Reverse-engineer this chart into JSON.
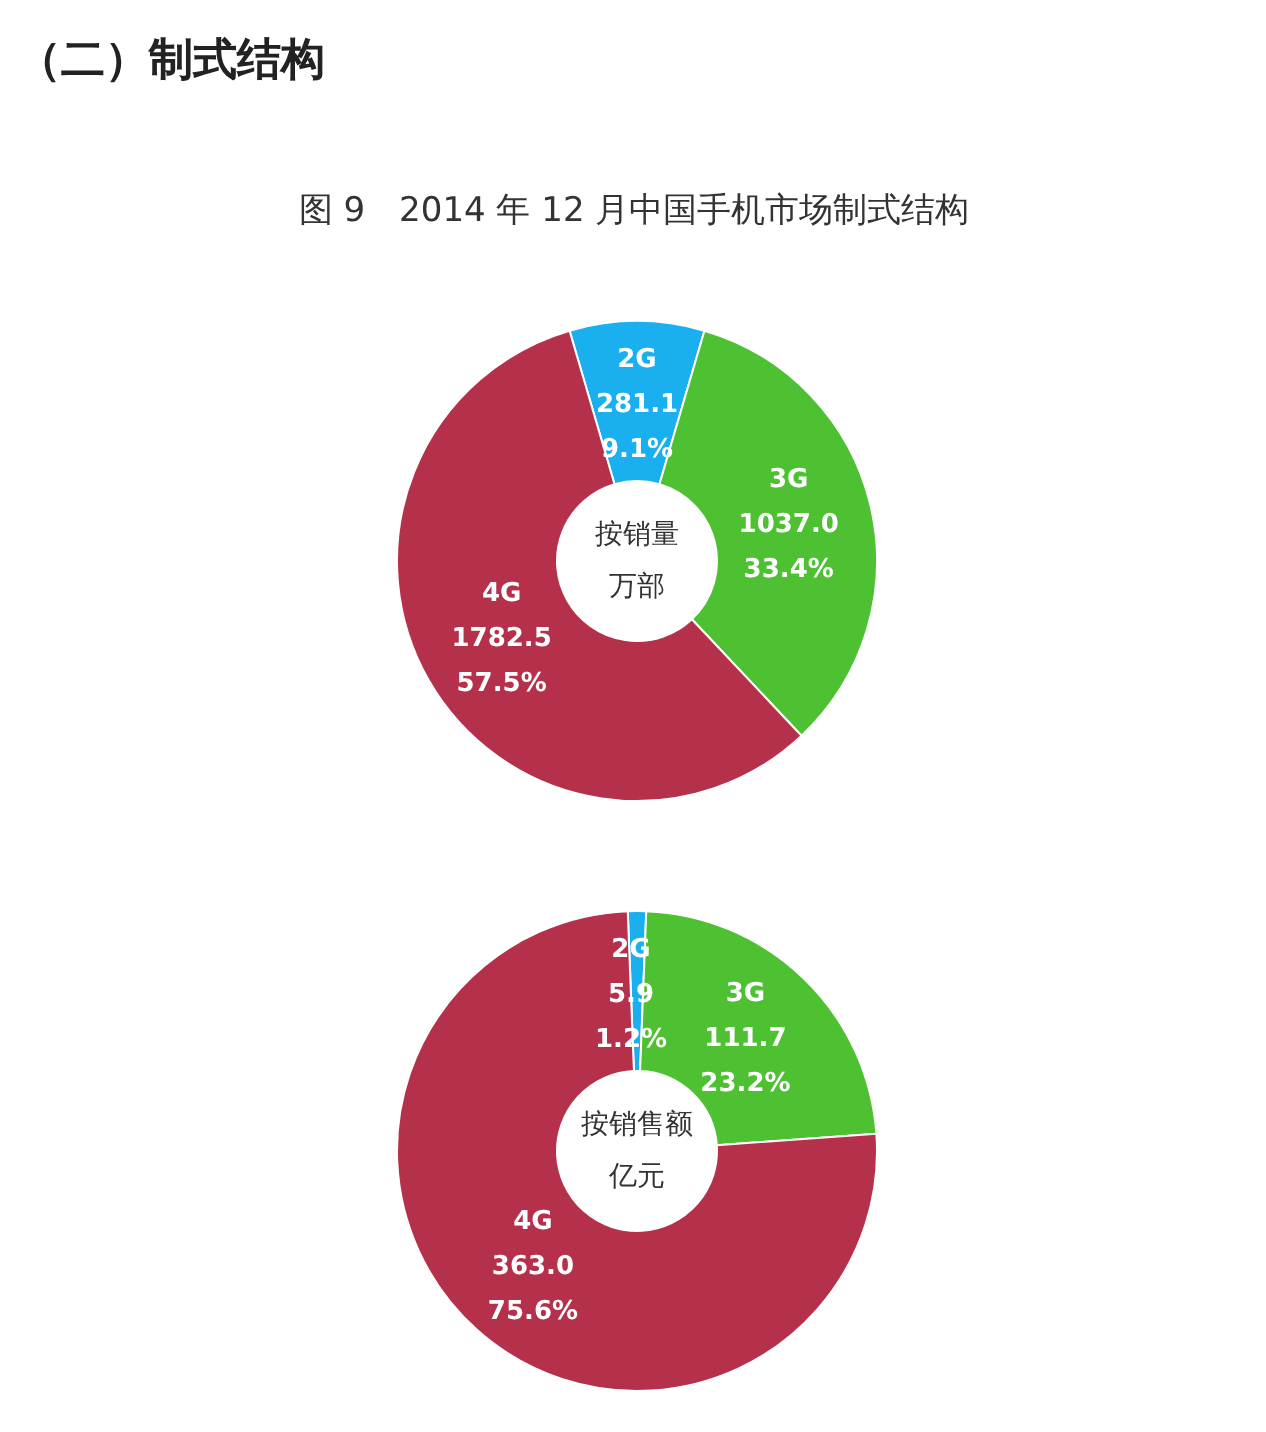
{
  "chart_data": [
    {
      "type": "other",
      "title": "（二）制式结构"
    },
    {
      "type": "donut",
      "title": "图 9　2014 年 12 月中国手机市场制式结构",
      "categories": [
        "2G",
        "3G",
        "4G"
      ],
      "values": [
        281.1,
        1037.0,
        1782.5
      ],
      "colors": [
        "#1ab0ef",
        "#4dc132",
        "#b5304a"
      ],
      "value_labels": [
        "281.1\n9.1%",
        "1037.0\n33.4%",
        "1782.5\n57.5%"
      ],
      "annotations": [
        "按销量",
        "万部"
      ]
    },
    {
      "type": "donut",
      "categories": [
        "2G",
        "3G",
        "4G"
      ],
      "values": [
        5.9,
        111.7,
        363.0
      ],
      "colors": [
        "#1ab0ef",
        "#4dc132",
        "#b5304a"
      ],
      "value_labels": [
        "5.9\n1.2%",
        "111.7\n23.2%",
        "363.0\n75.6%"
      ],
      "annotations": [
        "按销售额",
        "亿元"
      ]
    }
  ]
}
